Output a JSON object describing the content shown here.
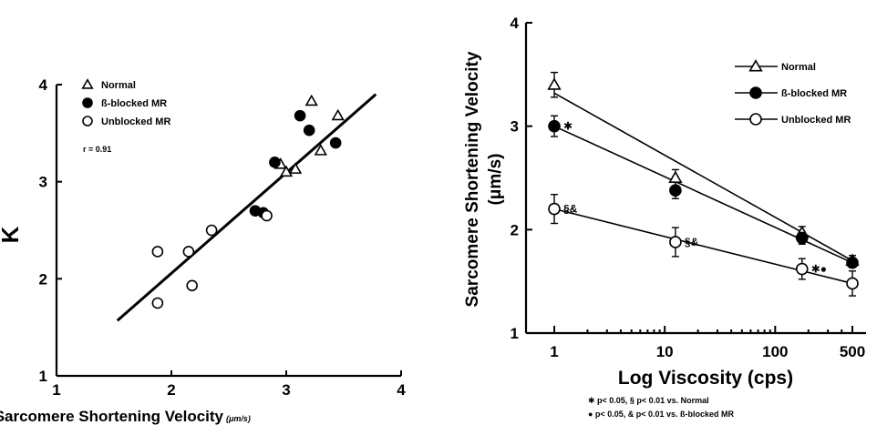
{
  "chart_data": [
    {
      "type": "scatter",
      "xlabel": "Sarcomere Shortening Velocity",
      "xlabel_unit": "(μm/s)",
      "ylabel": "K",
      "xlim": [
        1,
        4
      ],
      "ylim": [
        1,
        4
      ],
      "xticks": [
        "1",
        "2",
        "3",
        "4"
      ],
      "yticks": [
        "1",
        "2",
        "3",
        "4"
      ],
      "legend": [
        {
          "marker": "triangle-open",
          "label": "Normal"
        },
        {
          "marker": "circle-filled",
          "label": "ß-blocked MR"
        },
        {
          "marker": "circle-open",
          "label": "Unblocked MR"
        }
      ],
      "annotation": "r = 0.91",
      "legend_position": "top-left",
      "series": [
        {
          "name": "Normal",
          "marker": "triangle-open",
          "points": [
            [
              2.95,
              3.18
            ],
            [
              3.0,
              3.1
            ],
            [
              3.08,
              3.13
            ],
            [
              3.3,
              3.32
            ],
            [
              3.22,
              3.83
            ],
            [
              3.45,
              3.68
            ]
          ]
        },
        {
          "name": "ß-blocked MR",
          "marker": "circle-filled",
          "points": [
            [
              2.73,
              2.7
            ],
            [
              2.8,
              2.68
            ],
            [
              2.9,
              3.2
            ],
            [
              3.12,
              3.68
            ],
            [
              3.2,
              3.53
            ],
            [
              3.43,
              3.4
            ]
          ]
        },
        {
          "name": "Unblocked MR",
          "marker": "circle-open",
          "points": [
            [
              1.88,
              2.28
            ],
            [
              1.88,
              1.75
            ],
            [
              2.15,
              2.28
            ],
            [
              2.18,
              1.93
            ],
            [
              2.35,
              2.5
            ],
            [
              2.83,
              2.65
            ]
          ]
        }
      ],
      "regression_line": [
        [
          1.53,
          1.57
        ],
        [
          3.78,
          3.9
        ]
      ]
    },
    {
      "type": "line",
      "xlabel": "Log Viscosity (cps)",
      "ylabel": "Sarcomere Shortening Velocity",
      "ylabel_unit": "(μm/s)",
      "xscale": "log",
      "xticks": [
        "1",
        "10",
        "100",
        "500"
      ],
      "x": [
        1,
        12.5,
        175,
        500
      ],
      "ylim": [
        1,
        4
      ],
      "yticks": [
        "1",
        "2",
        "3",
        "4"
      ],
      "legend_position": "top-right",
      "legend": [
        {
          "marker": "triangle-open",
          "label": "Normal"
        },
        {
          "marker": "circle-filled",
          "label": "ß-blocked MR"
        },
        {
          "marker": "circle-open",
          "label": "Unblocked MR"
        }
      ],
      "series": [
        {
          "name": "Normal",
          "marker": "triangle-open",
          "values": [
            3.4,
            2.5,
            1.97,
            1.7
          ],
          "errors": [
            0.12,
            0.08,
            0.06,
            0.05
          ],
          "fit": [
            3.32,
            1.7
          ]
        },
        {
          "name": "ß-blocked MR",
          "marker": "circle-filled",
          "values": [
            3.0,
            2.38,
            1.92,
            1.68
          ],
          "errors": [
            0.1,
            0.08,
            0.06,
            0.04
          ],
          "fit": [
            3.0,
            1.68
          ]
        },
        {
          "name": "Unblocked MR",
          "marker": "circle-open",
          "values": [
            2.2,
            1.88,
            1.62,
            1.48
          ],
          "errors": [
            0.14,
            0.14,
            0.1,
            0.12
          ],
          "fit": [
            2.2,
            1.48
          ]
        }
      ],
      "point_labels": [
        {
          "series": 1,
          "index": 0,
          "text": "✱"
        },
        {
          "series": 2,
          "index": 0,
          "text": "§&"
        },
        {
          "series": 2,
          "index": 1,
          "text": "§&"
        },
        {
          "series": 2,
          "index": 2,
          "text": "✱●"
        }
      ],
      "footnotes": [
        "✱ p< 0.05,  §  p< 0.01 vs. Normal",
        "● p< 0.05,  &  p< 0.01 vs. ß-blocked MR"
      ]
    }
  ]
}
